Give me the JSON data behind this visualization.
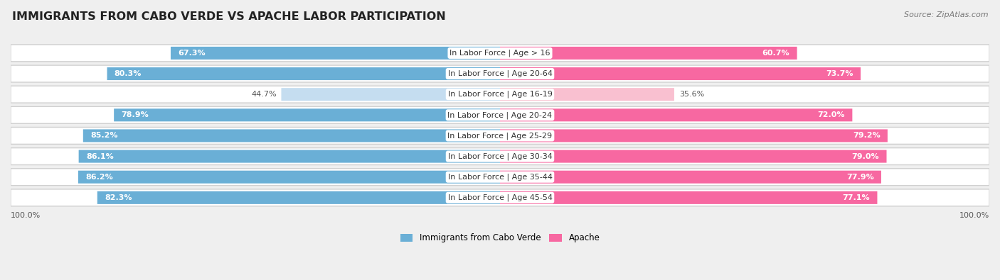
{
  "title": "IMMIGRANTS FROM CABO VERDE VS APACHE LABOR PARTICIPATION",
  "source": "Source: ZipAtlas.com",
  "categories": [
    "In Labor Force | Age > 16",
    "In Labor Force | Age 20-64",
    "In Labor Force | Age 16-19",
    "In Labor Force | Age 20-24",
    "In Labor Force | Age 25-29",
    "In Labor Force | Age 30-34",
    "In Labor Force | Age 35-44",
    "In Labor Force | Age 45-54"
  ],
  "cabo_verde": [
    67.3,
    80.3,
    44.7,
    78.9,
    85.2,
    86.1,
    86.2,
    82.3
  ],
  "apache": [
    60.7,
    73.7,
    35.6,
    72.0,
    79.2,
    79.0,
    77.9,
    77.1
  ],
  "cabo_verde_color_full": "#6aafd6",
  "cabo_verde_color_light": "#c5ddf0",
  "apache_color_full": "#f768a1",
  "apache_color_light": "#f9c0d0",
  "bg_color": "#efefef",
  "row_bg": "#ffffff",
  "row_shadow": "#d8d8d8",
  "max_val": 100.0,
  "legend_cabo": "Immigrants from Cabo Verde",
  "legend_apache": "Apache",
  "title_fontsize": 11.5,
  "bar_fontsize": 8.0,
  "label_fontsize": 8.0
}
